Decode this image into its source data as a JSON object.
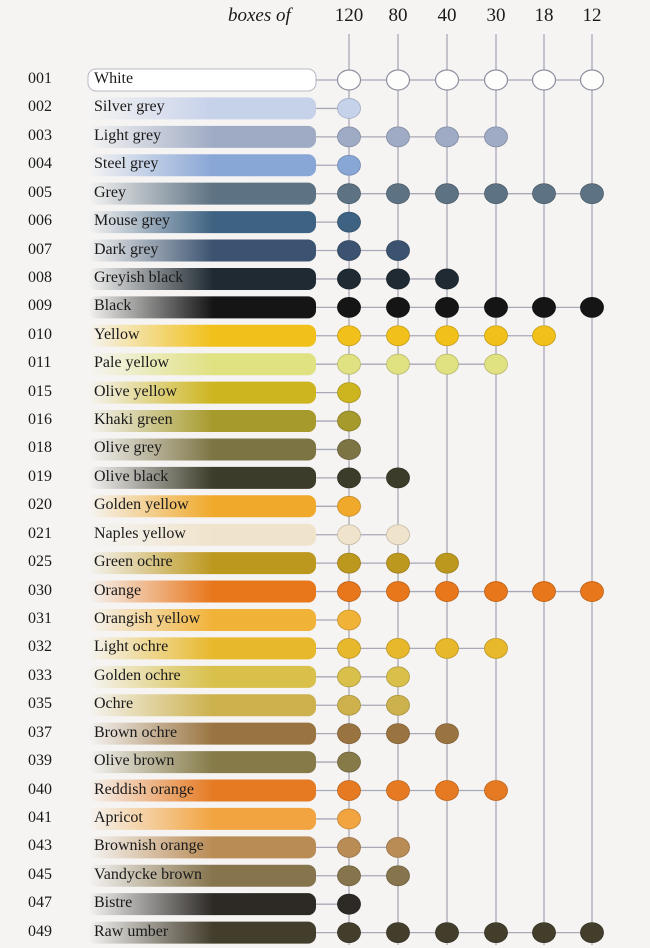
{
  "header": {
    "lead": "boxes of",
    "columns": [
      "120",
      "80",
      "40",
      "30",
      "18",
      "12"
    ]
  },
  "colors": [
    {
      "code": "001",
      "name": "White",
      "hex": "#fdfdfc",
      "boxes": [
        120,
        80,
        40,
        30,
        18,
        12
      ]
    },
    {
      "code": "002",
      "name": "Silver grey",
      "hex": "#c6d1ea",
      "boxes": [
        120
      ]
    },
    {
      "code": "003",
      "name": "Light grey",
      "hex": "#9fabc4",
      "boxes": [
        120,
        80,
        40,
        30
      ]
    },
    {
      "code": "004",
      "name": "Steel grey",
      "hex": "#88a6d6",
      "boxes": [
        120
      ]
    },
    {
      "code": "005",
      "name": "Grey",
      "hex": "#5d7282",
      "boxes": [
        120,
        80,
        40,
        30,
        18,
        12
      ]
    },
    {
      "code": "006",
      "name": "Mouse grey",
      "hex": "#3e6282",
      "boxes": [
        120
      ]
    },
    {
      "code": "007",
      "name": "Dark grey",
      "hex": "#3b5370",
      "boxes": [
        120,
        80
      ]
    },
    {
      "code": "008",
      "name": "Greyish black",
      "hex": "#1f2a32",
      "boxes": [
        120,
        80,
        40
      ]
    },
    {
      "code": "009",
      "name": "Black",
      "hex": "#151515",
      "boxes": [
        120,
        80,
        40,
        30,
        18,
        12
      ]
    },
    {
      "code": "010",
      "name": "Yellow",
      "hex": "#f1c01a",
      "boxes": [
        120,
        80,
        40,
        30,
        18
      ]
    },
    {
      "code": "011",
      "name": "Pale yellow",
      "hex": "#e0e181",
      "boxes": [
        120,
        80,
        40,
        30
      ]
    },
    {
      "code": "015",
      "name": "Olive yellow",
      "hex": "#cdb51f",
      "boxes": [
        120
      ]
    },
    {
      "code": "016",
      "name": "Khaki green",
      "hex": "#a69a2c",
      "boxes": [
        120
      ]
    },
    {
      "code": "018",
      "name": "Olive grey",
      "hex": "#7d7444",
      "boxes": [
        120
      ]
    },
    {
      "code": "019",
      "name": "Olive black",
      "hex": "#3c3c2a",
      "boxes": [
        120,
        80
      ]
    },
    {
      "code": "020",
      "name": "Golden yellow",
      "hex": "#f0a92b",
      "boxes": [
        120
      ]
    },
    {
      "code": "021",
      "name": "Naples yellow",
      "hex": "#f0e3cb",
      "boxes": [
        120,
        80
      ]
    },
    {
      "code": "025",
      "name": "Green ochre",
      "hex": "#bd981e",
      "boxes": [
        120,
        80,
        40
      ]
    },
    {
      "code": "030",
      "name": "Orange",
      "hex": "#e8761a",
      "boxes": [
        120,
        80,
        40,
        30,
        18,
        12
      ]
    },
    {
      "code": "031",
      "name": "Orangish yellow",
      "hex": "#f1b238",
      "boxes": [
        120
      ]
    },
    {
      "code": "032",
      "name": "Light ochre",
      "hex": "#e7b82b",
      "boxes": [
        120,
        80,
        40,
        30
      ]
    },
    {
      "code": "033",
      "name": "Golden ochre",
      "hex": "#d8c04a",
      "boxes": [
        120,
        80
      ]
    },
    {
      "code": "035",
      "name": "Ochre",
      "hex": "#ccb14c",
      "boxes": [
        120,
        80
      ]
    },
    {
      "code": "037",
      "name": "Brown ochre",
      "hex": "#9a7440",
      "boxes": [
        120,
        80,
        40
      ]
    },
    {
      "code": "039",
      "name": "Olive brown",
      "hex": "#857a48",
      "boxes": [
        120
      ]
    },
    {
      "code": "040",
      "name": "Reddish orange",
      "hex": "#e57a22",
      "boxes": [
        120,
        80,
        40,
        30
      ]
    },
    {
      "code": "041",
      "name": "Apricot",
      "hex": "#f2a440",
      "boxes": [
        120
      ]
    },
    {
      "code": "043",
      "name": "Brownish orange",
      "hex": "#b98b55",
      "boxes": [
        120,
        80
      ]
    },
    {
      "code": "045",
      "name": "Vandycke brown",
      "hex": "#86744c",
      "boxes": [
        120,
        80
      ]
    },
    {
      "code": "047",
      "name": "Bistre",
      "hex": "#2d2a26",
      "boxes": [
        120
      ]
    },
    {
      "code": "049",
      "name": "Raw umber",
      "hex": "#433d2c",
      "boxes": [
        120,
        80,
        40,
        30,
        18,
        12
      ]
    }
  ]
}
